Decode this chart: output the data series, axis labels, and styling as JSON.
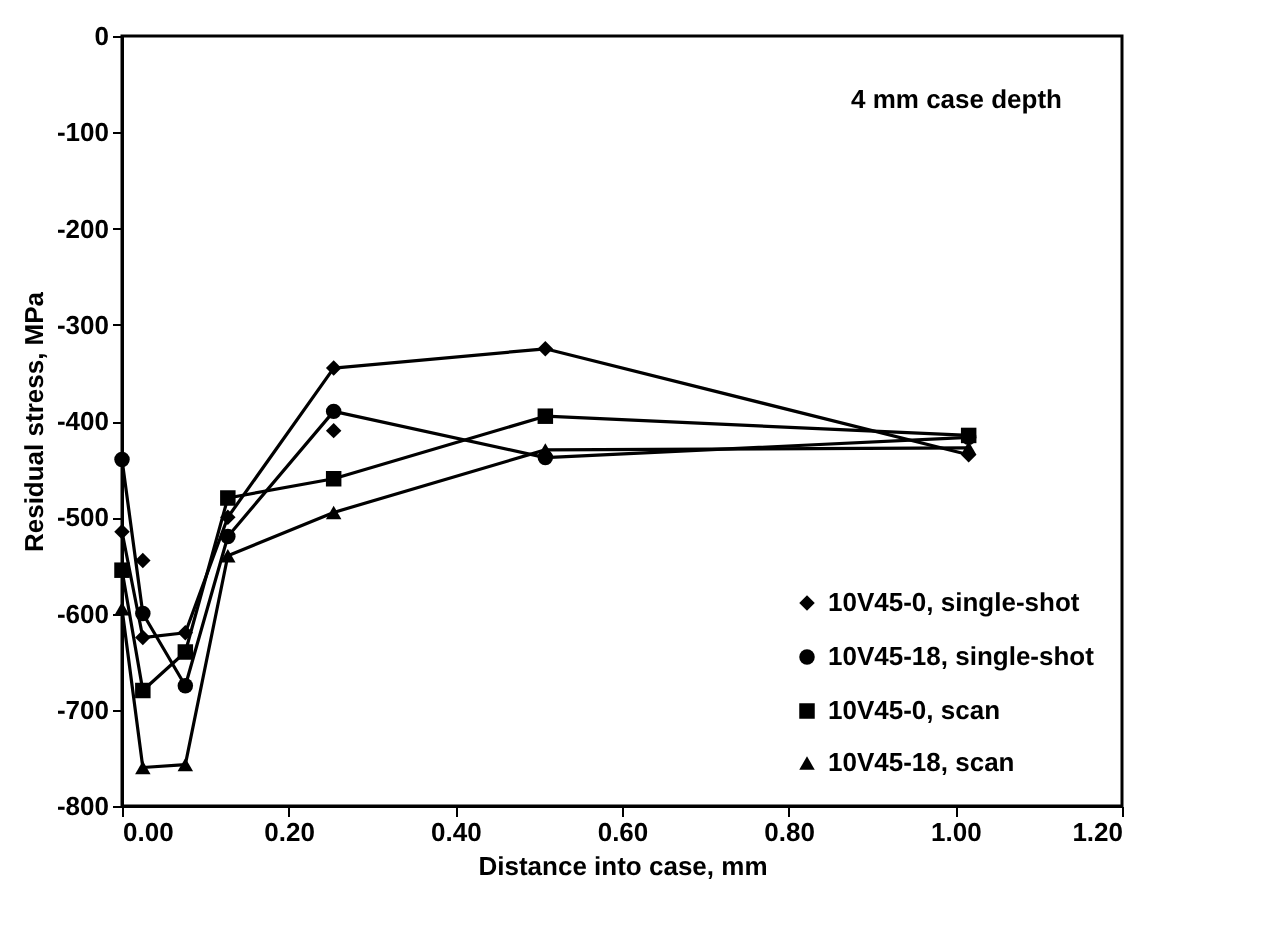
{
  "chart_data": {
    "type": "line",
    "xlabel": "Distance into case, mm",
    "ylabel": "Residual stress, MPa",
    "annotations": [
      "4 mm case depth"
    ],
    "xlim": [
      0,
      1.2
    ],
    "xticks": [
      {
        "value": 0,
        "label": "0.00"
      },
      {
        "value": 0.2,
        "label": "0.20"
      },
      {
        "value": 0.4,
        "label": "0.40"
      },
      {
        "value": 0.6,
        "label": "0.60"
      },
      {
        "value": 0.8,
        "label": "0.80"
      },
      {
        "value": 1,
        "label": "1.00"
      },
      {
        "value": 1.2,
        "label": "1.20"
      }
    ],
    "ylim": [
      -800,
      0
    ],
    "yticks": [
      -800,
      -700,
      -600,
      -500,
      -400,
      -300,
      -200,
      -100,
      0
    ],
    "grid": false,
    "legend": "bottom right",
    "line_style": "solid",
    "series": [
      {
        "name": "10V45-0, single-shot",
        "color": "#000000",
        "marker": "diamond",
        "x": [
          0,
          0.025,
          0.076,
          0.127,
          0.254,
          0.508,
          1.016
        ],
        "values": [
          -515,
          -625,
          -620,
          -500,
          -345,
          -325,
          -435
        ]
      },
      {
        "name": "10V45-18, single-shot",
        "color": "#000000",
        "marker": "circle",
        "x": [
          0,
          0.025,
          0.076,
          0.127,
          0.254,
          0.508,
          1.016
        ],
        "values": [
          -440,
          -600,
          -675,
          -520,
          -390,
          -438,
          -417
        ]
      },
      {
        "name": "10V45-0, scan",
        "color": "#000000",
        "marker": "square",
        "x": [
          0,
          0.025,
          0.076,
          0.127,
          0.254,
          0.508,
          1.016
        ],
        "values": [
          -555,
          -680,
          -640,
          -480,
          -460,
          -395,
          -415
        ]
      },
      {
        "name": "10V45-18, scan",
        "color": "#000000",
        "marker": "triangle",
        "x": [
          0,
          0.025,
          0.076,
          0.127,
          0.254,
          0.508,
          1.016
        ],
        "values": [
          -595,
          -760,
          -757,
          -540,
          -495,
          -430,
          -428
        ]
      },
      {
        "type": "scatter",
        "color": "#000000",
        "marker": "diamond",
        "x": [
          0.025,
          0.254
        ],
        "values": [
          -545,
          -410
        ]
      }
    ]
  }
}
